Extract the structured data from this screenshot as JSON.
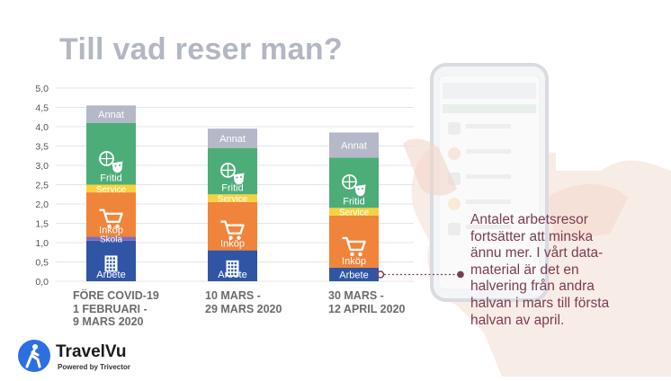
{
  "slide": {
    "title": "Till vad reser man?",
    "annotation_lines": [
      "Antalet arbetsresor",
      "fortsätter att minska",
      "ännu mer. I vårt data-",
      "material är det en",
      "halvering från andra",
      "halvan i mars till första",
      "halvan av april."
    ],
    "logo": {
      "brand": "TravelVu",
      "tagline": "Powered by Trivector"
    },
    "colors": {
      "arbete": "#2f55a4",
      "skola": "#7f6cb9",
      "inkop": "#f0843a",
      "service": "#f7d23e",
      "fritid": "#4cad79",
      "annat": "#b5b8c8",
      "annotation": "#7b3d52",
      "title": "#b3b7c2"
    }
  },
  "chart_data": {
    "type": "bar",
    "stacked": true,
    "ylim": [
      0,
      5
    ],
    "ytick_labels": [
      "0,0",
      "0,5",
      "1,0",
      "1,5",
      "2,0",
      "2,5",
      "3,0",
      "3,5",
      "4,0",
      "4,5",
      "5,0"
    ],
    "categories": [
      [
        "FÖRE COVID-19",
        "1 FEBRUARI -",
        "9 MARS 2020"
      ],
      [
        "10 MARS -",
        "29 MARS 2020"
      ],
      [
        "30 MARS -",
        "12 APRIL 2020"
      ]
    ],
    "series": [
      {
        "name": "Arbete",
        "values": [
          1.05,
          0.8,
          0.35
        ],
        "color": "#2f55a4",
        "icon": "building-icon"
      },
      {
        "name": "Skola",
        "values": [
          0.1,
          0.0,
          0.0
        ],
        "color": "#7f6cb9"
      },
      {
        "name": "Inköp",
        "values": [
          1.15,
          1.25,
          1.35
        ],
        "color": "#f0843a",
        "icon": "shopping-cart-icon"
      },
      {
        "name": "Service",
        "values": [
          0.2,
          0.2,
          0.2
        ],
        "color": "#f7d23e"
      },
      {
        "name": "Fritid",
        "values": [
          1.6,
          1.2,
          1.3
        ],
        "color": "#4cad79",
        "icon": "sports-culture-icon"
      },
      {
        "name": "Annat",
        "values": [
          0.45,
          0.5,
          0.65
        ],
        "color": "#b5b8c8"
      }
    ],
    "grid": true
  }
}
